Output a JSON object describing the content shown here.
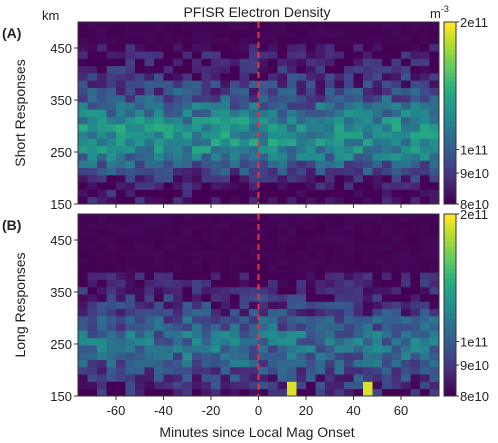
{
  "title": "PFISR Electron Density",
  "unit": "m",
  "unit_exp": "-3",
  "km_label": "km",
  "xlabel": "Minutes since Local Mag Onset",
  "colors": {
    "marker": "#e8323c",
    "low": "#440154",
    "high": "#fde725"
  },
  "chart_data": [
    {
      "type": "heatmap",
      "panel": "(A)",
      "ylabel": "Short Responses",
      "x_range": [
        -76,
        76
      ],
      "y_range": [
        150,
        500
      ],
      "x_ticks": [
        "-60",
        "-40",
        "-20",
        "0",
        "20",
        "40",
        "60"
      ],
      "y_ticks": [
        "150",
        "250",
        "350",
        "450"
      ],
      "colorbar_ticks": [
        "2e11",
        "1e11",
        "9e10",
        "8e10"
      ],
      "colorbar_range": [
        "8e10",
        "2e11"
      ],
      "colormap": "viridis",
      "vline": 0,
      "altitude_profile": [
        [
          150,
          0.02
        ],
        [
          190,
          0.02
        ],
        [
          200,
          0.1
        ],
        [
          220,
          0.25
        ],
        [
          250,
          0.44
        ],
        [
          280,
          0.52
        ],
        [
          310,
          0.46
        ],
        [
          340,
          0.32
        ],
        [
          380,
          0.16
        ],
        [
          420,
          0.05
        ],
        [
          460,
          0.0
        ],
        [
          500,
          0.0
        ]
      ]
    },
    {
      "type": "heatmap",
      "panel": "(B)",
      "ylabel": "Long Responses",
      "x_range": [
        -76,
        76
      ],
      "y_range": [
        150,
        500
      ],
      "x_ticks": [
        "-60",
        "-40",
        "-20",
        "0",
        "20",
        "40",
        "60"
      ],
      "y_ticks": [
        "150",
        "250",
        "350",
        "450"
      ],
      "colorbar_ticks": [
        "2e11",
        "1e11",
        "9e10",
        "8e10"
      ],
      "colorbar_range": [
        "8e10",
        "2e11"
      ],
      "colormap": "viridis",
      "vline": 0,
      "altitude_profile": [
        [
          150,
          0.05
        ],
        [
          170,
          0.12
        ],
        [
          200,
          0.24
        ],
        [
          230,
          0.34
        ],
        [
          260,
          0.36
        ],
        [
          290,
          0.28
        ],
        [
          320,
          0.16
        ],
        [
          350,
          0.07
        ],
        [
          390,
          0.0
        ],
        [
          500,
          0.0
        ]
      ]
    }
  ]
}
